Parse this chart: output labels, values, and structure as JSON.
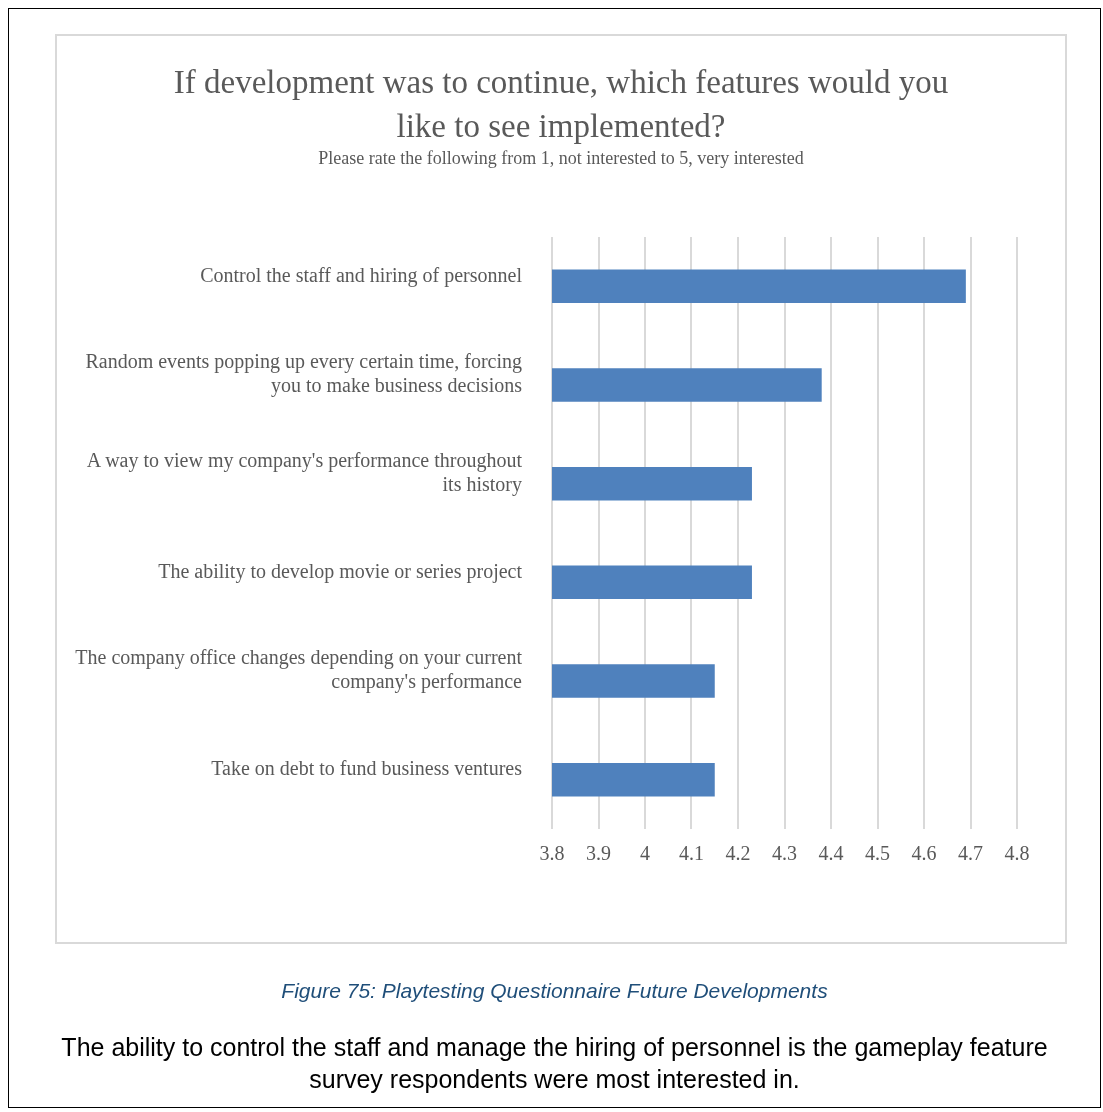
{
  "chart_data": {
    "type": "bar",
    "orientation": "horizontal",
    "title": "If development was to continue, which features would you like to see implemented?",
    "subtitle": "Please rate the following from 1, not interested to 5, very interested",
    "categories": [
      "Control the staff and hiring of personnel",
      "Random events popping up every certain time, forcing you to make business decisions",
      "A way to view my company's performance throughout its history",
      "The ability to develop movie or series project",
      "The company office changes depending on your current company's performance",
      "Take on debt to fund business ventures"
    ],
    "values": [
      4.69,
      4.38,
      4.23,
      4.23,
      4.15,
      4.15
    ],
    "color": "#4f81bd",
    "xlim": [
      3.8,
      4.8
    ],
    "xticks": [
      3.8,
      3.9,
      4,
      4.1,
      4.2,
      4.3,
      4.4,
      4.5,
      4.6,
      4.7,
      4.8
    ],
    "grid": "x",
    "legend": false,
    "annotations": [
      "Figure 75: Playtesting Questionnaire Future Developments",
      "The ability to control the staff and manage the hiring of personnel is the gameplay feature survey respondents were most interested in."
    ]
  }
}
